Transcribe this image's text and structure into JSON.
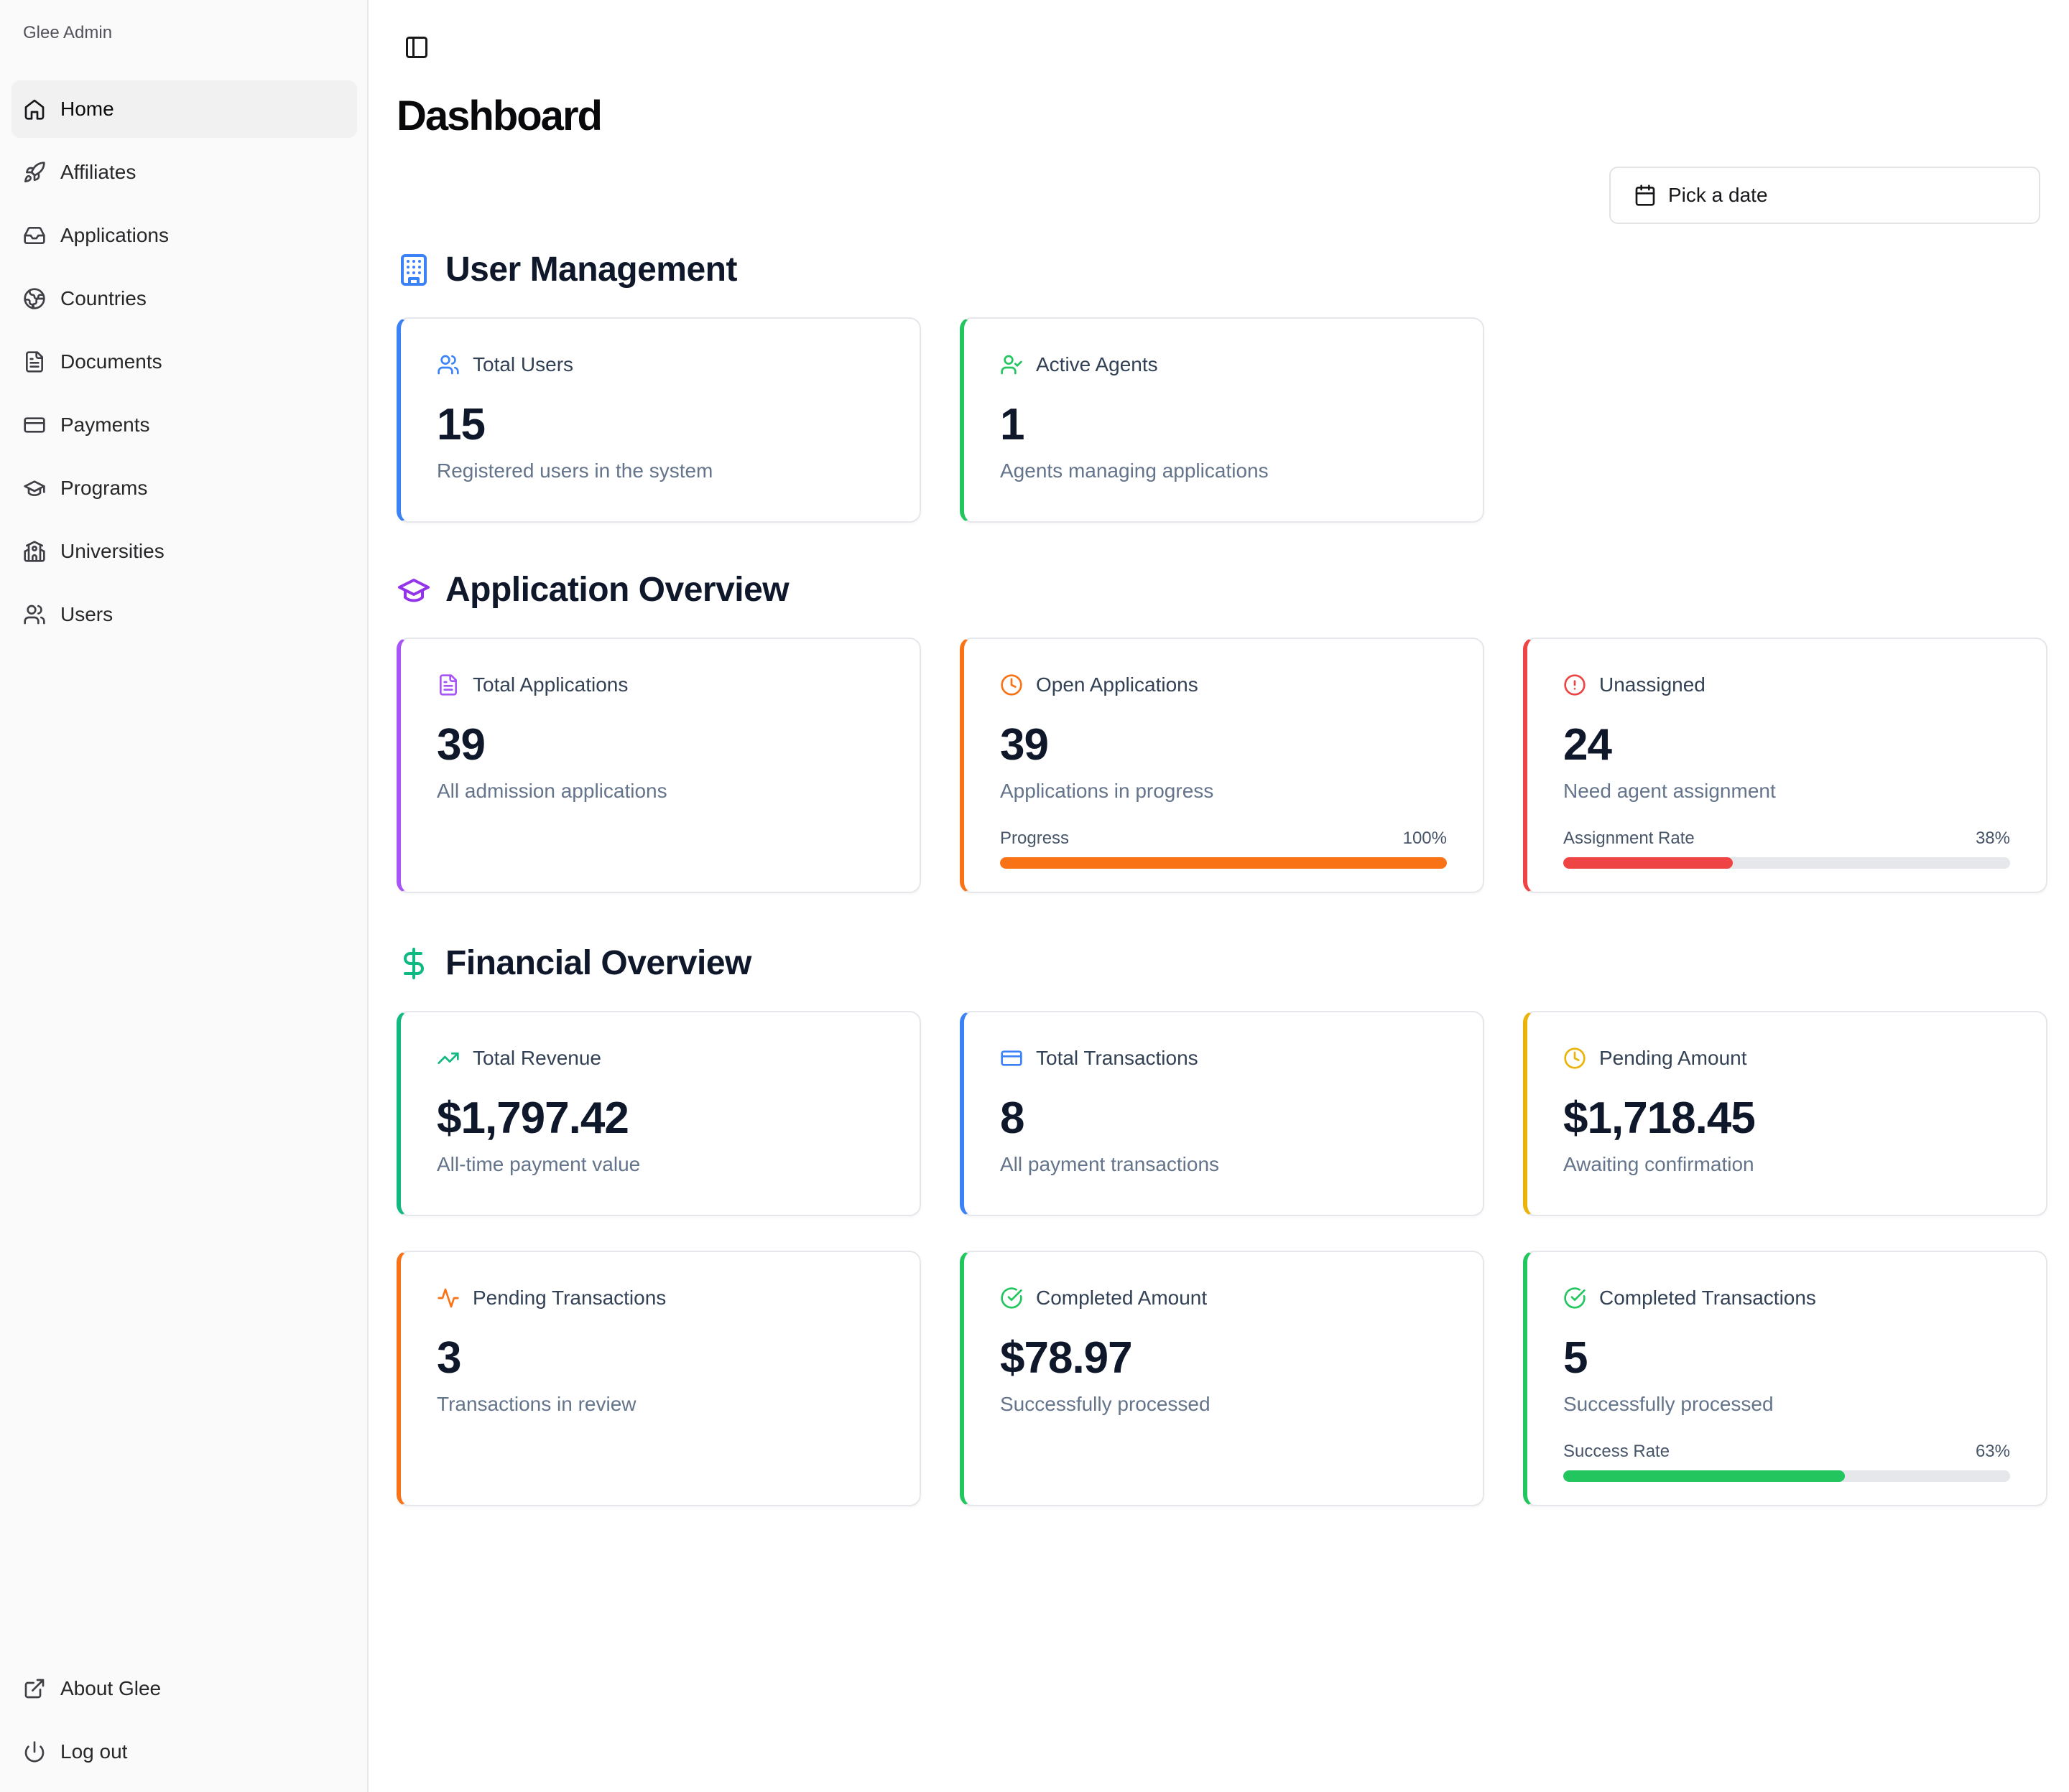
{
  "app": {
    "brand": "Glee Admin"
  },
  "sidebar": {
    "items": [
      {
        "label": "Home",
        "icon": "home-icon"
      },
      {
        "label": "Affiliates",
        "icon": "rocket-icon"
      },
      {
        "label": "Applications",
        "icon": "inbox-icon"
      },
      {
        "label": "Countries",
        "icon": "globe-icon"
      },
      {
        "label": "Documents",
        "icon": "file-text-icon"
      },
      {
        "label": "Payments",
        "icon": "credit-card-icon"
      },
      {
        "label": "Programs",
        "icon": "graduation-cap-icon"
      },
      {
        "label": "Universities",
        "icon": "school-icon"
      },
      {
        "label": "Users",
        "icon": "users-icon"
      }
    ],
    "bottom": [
      {
        "label": "About Glee",
        "icon": "external-link-icon"
      },
      {
        "label": "Log out",
        "icon": "power-icon"
      }
    ]
  },
  "header": {
    "title": "Dashboard",
    "date_picker_label": "Pick a date"
  },
  "sections": {
    "users": {
      "title": "User Management"
    },
    "applications": {
      "title": "Application Overview"
    },
    "financial": {
      "title": "Financial Overview"
    }
  },
  "cards": {
    "total_users": {
      "label": "Total Users",
      "value": "15",
      "desc": "Registered users in the system"
    },
    "active_agents": {
      "label": "Active Agents",
      "value": "1",
      "desc": "Agents managing applications"
    },
    "total_applications": {
      "label": "Total Applications",
      "value": "39",
      "desc": "All admission applications"
    },
    "open_applications": {
      "label": "Open Applications",
      "value": "39",
      "desc": "Applications in progress",
      "progress_label": "Progress",
      "progress_text": "100%",
      "progress": 1.0
    },
    "unassigned": {
      "label": "Unassigned",
      "value": "24",
      "desc": "Need agent assignment",
      "progress_label": "Assignment Rate",
      "progress_text": "38%",
      "progress": 0.38
    },
    "total_revenue": {
      "label": "Total Revenue",
      "value": "$1,797.42",
      "desc": "All-time payment value"
    },
    "total_transactions": {
      "label": "Total Transactions",
      "value": "8",
      "desc": "All payment transactions"
    },
    "pending_amount": {
      "label": "Pending Amount",
      "value": "$1,718.45",
      "desc": "Awaiting confirmation"
    },
    "pending_transactions": {
      "label": "Pending Transactions",
      "value": "3",
      "desc": "Transactions in review"
    },
    "completed_amount": {
      "label": "Completed Amount",
      "value": "$78.97",
      "desc": "Successfully processed"
    },
    "completed_transactions": {
      "label": "Completed Transactions",
      "value": "5",
      "desc": "Successfully processed",
      "progress_label": "Success Rate",
      "progress_text": "63%",
      "progress": 0.63
    }
  },
  "colors": {
    "blue": "#3b82f6",
    "green": "#22c55e",
    "purple": "#a855f7",
    "orange": "#f97316",
    "red": "#ef4444",
    "emerald": "#10b981",
    "yellow": "#eab308"
  }
}
